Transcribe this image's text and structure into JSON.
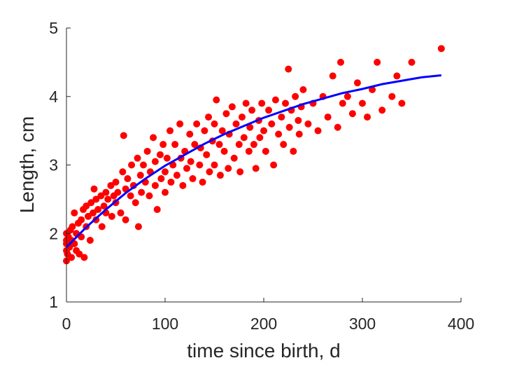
{
  "chart_data": {
    "type": "scatter",
    "xlabel": "time since birth, d",
    "ylabel": "Length, cm",
    "xlim": [
      0,
      400
    ],
    "xticks": [
      0,
      100,
      200,
      300,
      400
    ],
    "ylim": [
      1,
      5
    ],
    "yticks": [
      1,
      2,
      3,
      4,
      5
    ],
    "series": [
      {
        "type": "scatter",
        "color": "#ff0000",
        "x": [
          0,
          0,
          0,
          0,
          0,
          1,
          2,
          3,
          4,
          5,
          5,
          6,
          8,
          8,
          10,
          10,
          12,
          13,
          15,
          15,
          17,
          18,
          20,
          20,
          22,
          24,
          25,
          27,
          28,
          30,
          30,
          32,
          35,
          36,
          38,
          40,
          40,
          42,
          45,
          46,
          48,
          50,
          50,
          52,
          55,
          57,
          58,
          60,
          60,
          62,
          65,
          66,
          68,
          70,
          72,
          73,
          75,
          76,
          78,
          80,
          82,
          84,
          85,
          88,
          90,
          90,
          92,
          95,
          96,
          98,
          100,
          100,
          102,
          105,
          106,
          108,
          110,
          112,
          115,
          116,
          118,
          120,
          122,
          125,
          126,
          128,
          130,
          132,
          135,
          136,
          138,
          140,
          142,
          144,
          145,
          148,
          150,
          150,
          152,
          155,
          156,
          158,
          160,
          162,
          164,
          165,
          168,
          170,
          172,
          175,
          176,
          178,
          180,
          182,
          185,
          186,
          188,
          190,
          192,
          195,
          196,
          198,
          200,
          202,
          205,
          208,
          210,
          212,
          215,
          218,
          220,
          222,
          225,
          226,
          228,
          230,
          232,
          235,
          236,
          238,
          240,
          245,
          250,
          255,
          260,
          265,
          270,
          275,
          278,
          280,
          285,
          290,
          295,
          300,
          305,
          310,
          315,
          320,
          330,
          335,
          340,
          350,
          380
        ],
        "values": [
          1.6,
          1.9,
          1.75,
          2.0,
          1.85,
          1.7,
          1.95,
          1.8,
          2.05,
          1.65,
          1.9,
          2.1,
          1.85,
          2.3,
          2.0,
          1.75,
          2.15,
          1.7,
          2.2,
          1.95,
          2.35,
          1.65,
          2.1,
          2.4,
          2.25,
          1.9,
          2.45,
          2.3,
          2.65,
          2.2,
          2.5,
          2.35,
          2.55,
          2.1,
          2.4,
          2.6,
          2.3,
          2.5,
          2.7,
          2.25,
          2.55,
          2.45,
          2.75,
          2.6,
          2.3,
          2.9,
          3.43,
          2.65,
          2.2,
          2.8,
          2.55,
          3.0,
          2.7,
          2.45,
          3.1,
          2.1,
          2.85,
          2.6,
          3.0,
          2.75,
          3.2,
          2.55,
          2.9,
          3.4,
          2.7,
          3.05,
          2.35,
          3.15,
          2.8,
          3.3,
          2.9,
          2.6,
          3.1,
          3.5,
          2.75,
          3.0,
          3.3,
          2.85,
          3.6,
          3.1,
          2.7,
          3.2,
          2.95,
          3.45,
          3.05,
          2.8,
          3.3,
          3.6,
          3.0,
          3.25,
          2.75,
          3.5,
          3.15,
          3.7,
          2.9,
          3.35,
          3.6,
          3.0,
          3.95,
          3.3,
          2.85,
          3.5,
          3.2,
          3.75,
          2.95,
          3.45,
          3.85,
          3.1,
          3.6,
          3.3,
          2.9,
          3.7,
          3.4,
          3.9,
          3.2,
          3.55,
          3.8,
          3.3,
          2.95,
          3.65,
          3.4,
          3.9,
          3.5,
          3.2,
          3.8,
          3.6,
          3.0,
          3.95,
          3.45,
          3.7,
          3.3,
          3.9,
          4.4,
          3.55,
          3.8,
          3.2,
          4.0,
          3.65,
          3.45,
          3.85,
          4.1,
          3.6,
          3.9,
          3.5,
          4.0,
          3.7,
          4.3,
          3.55,
          4.5,
          3.9,
          4.0,
          3.75,
          4.2,
          3.9,
          3.7,
          4.1,
          4.5,
          3.8,
          4.0,
          4.3,
          3.9,
          4.5,
          4.7
        ]
      },
      {
        "type": "line",
        "color": "#0000ff",
        "x": [
          0,
          20,
          40,
          60,
          80,
          100,
          120,
          140,
          160,
          180,
          200,
          220,
          240,
          260,
          280,
          300,
          320,
          340,
          360,
          380
        ],
        "values": [
          1.8,
          2.09,
          2.35,
          2.59,
          2.8,
          2.99,
          3.15,
          3.31,
          3.45,
          3.57,
          3.69,
          3.79,
          3.89,
          3.97,
          4.05,
          4.11,
          4.18,
          4.23,
          4.28,
          4.31
        ]
      }
    ]
  }
}
